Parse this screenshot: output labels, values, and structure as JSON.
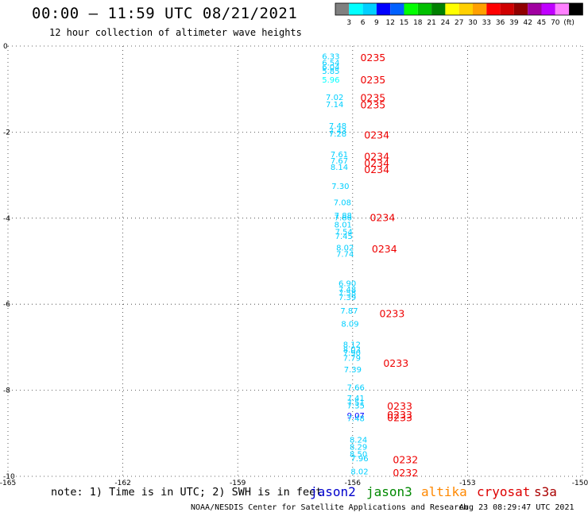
{
  "header": {
    "title": "00:00 – 11:59 UTC 08/21/2021",
    "subtitle": "12 hour collection of altimeter wave heights"
  },
  "legend": {
    "colors": [
      "#808080",
      "#00ffff",
      "#00cfff",
      "#0000ff",
      "#0060ff",
      "#00ff00",
      "#00c000",
      "#008000",
      "#ffff00",
      "#ffd000",
      "#ffa000",
      "#ff0000",
      "#d00000",
      "#900000",
      "#a000a0",
      "#c000ff",
      "#ff80ff",
      "#000000"
    ],
    "labels": [
      "3",
      "6",
      "9",
      "12",
      "15",
      "18",
      "21",
      "24",
      "27",
      "30",
      "33",
      "36",
      "39",
      "42",
      "45",
      "70",
      "(ft)"
    ]
  },
  "footer": {
    "note": "note: 1) Time is in UTC; 2) SWH is in feet",
    "credit": "NOAA/NESDIS Center for Satellite Applications and Research",
    "timestamp": "Aug 23 08:29:47 UTC 2021",
    "satellites": [
      {
        "name": "jason2",
        "color": "#0000cc"
      },
      {
        "name": "jason3",
        "color": "#008800"
      },
      {
        "name": "altika",
        "color": "#ff8800"
      },
      {
        "name": "cryosat",
        "color": "#dd0000"
      },
      {
        "name": "s3a",
        "color": "#aa0000"
      }
    ]
  },
  "chart_data": {
    "type": "scatter",
    "title": "00:00 – 11:59 UTC 08/21/2021",
    "xlabel": "",
    "ylabel": "",
    "xlim": [
      -165,
      -150
    ],
    "ylim": [
      -10,
      0
    ],
    "x_ticks": [
      {
        "value": -165,
        "label": "-165"
      },
      {
        "value": -162,
        "label": "-162"
      },
      {
        "value": -159,
        "label": "-159"
      },
      {
        "value": -156,
        "label": "-156"
      },
      {
        "value": -153,
        "label": "-153"
      },
      {
        "value": -150,
        "label": "-150"
      }
    ],
    "y_ticks": [
      {
        "value": 0,
        "label": "0"
      },
      {
        "value": -2,
        "label": "-2"
      },
      {
        "value": -4,
        "label": "-4"
      },
      {
        "value": -6,
        "label": "-6"
      },
      {
        "value": -8,
        "label": "-8"
      },
      {
        "value": -10,
        "label": "-10"
      }
    ],
    "grid": true,
    "wave_heights": [
      {
        "lon": -156.8,
        "lat": -0.3,
        "value": "6.33",
        "color": "#00cfff"
      },
      {
        "lon": -156.8,
        "lat": -0.45,
        "value": "6.54",
        "color": "#00cfff"
      },
      {
        "lon": -156.8,
        "lat": -0.55,
        "value": "6.04",
        "color": "#00cfff"
      },
      {
        "lon": -156.8,
        "lat": -0.65,
        "value": "5.85",
        "color": "#00cfff"
      },
      {
        "lon": -156.8,
        "lat": -0.85,
        "value": "5.96",
        "color": "#00ffff"
      },
      {
        "lon": -156.7,
        "lat": -1.25,
        "value": "7.02",
        "color": "#00cfff"
      },
      {
        "lon": -156.7,
        "lat": -1.42,
        "value": "7.14",
        "color": "#00cfff"
      },
      {
        "lon": -156.62,
        "lat": -1.92,
        "value": "7.48",
        "color": "#00cfff"
      },
      {
        "lon": -156.62,
        "lat": -2.04,
        "value": "7.43",
        "color": "#00cfff"
      },
      {
        "lon": -156.62,
        "lat": -2.1,
        "value": "7.28",
        "color": "#00cfff"
      },
      {
        "lon": -156.58,
        "lat": -2.58,
        "value": "7.61",
        "color": "#00cfff"
      },
      {
        "lon": -156.58,
        "lat": -2.73,
        "value": "7.67",
        "color": "#00cfff"
      },
      {
        "lon": -156.58,
        "lat": -2.88,
        "value": "8.14",
        "color": "#00cfff"
      },
      {
        "lon": -156.55,
        "lat": -3.32,
        "value": "7.30",
        "color": "#00cfff"
      },
      {
        "lon": -156.5,
        "lat": -3.7,
        "value": "7.08",
        "color": "#00cfff"
      },
      {
        "lon": -156.48,
        "lat": -4.0,
        "value": "7.88",
        "color": "#00cfff"
      },
      {
        "lon": -156.48,
        "lat": -4.05,
        "value": "7.86",
        "color": "#00cfff"
      },
      {
        "lon": -156.48,
        "lat": -4.22,
        "value": "8.01",
        "color": "#00cfff"
      },
      {
        "lon": -156.46,
        "lat": -4.38,
        "value": "7.54",
        "color": "#00cfff"
      },
      {
        "lon": -156.46,
        "lat": -4.48,
        "value": "7.45",
        "color": "#00cfff"
      },
      {
        "lon": -156.43,
        "lat": -4.75,
        "value": "8.02",
        "color": "#00cfff"
      },
      {
        "lon": -156.43,
        "lat": -4.9,
        "value": "7.74",
        "color": "#00cfff"
      },
      {
        "lon": -156.37,
        "lat": -5.58,
        "value": "6.90",
        "color": "#00cfff"
      },
      {
        "lon": -156.37,
        "lat": -5.72,
        "value": "7.48",
        "color": "#00cfff"
      },
      {
        "lon": -156.37,
        "lat": -5.8,
        "value": "7.58",
        "color": "#00cfff"
      },
      {
        "lon": -156.37,
        "lat": -5.9,
        "value": "7.39",
        "color": "#00cfff"
      },
      {
        "lon": -156.32,
        "lat": -6.22,
        "value": "7.87",
        "color": "#00cfff"
      },
      {
        "lon": -156.3,
        "lat": -6.52,
        "value": "8.09",
        "color": "#00cfff"
      },
      {
        "lon": -156.25,
        "lat": -7.0,
        "value": "8.12",
        "color": "#00cfff"
      },
      {
        "lon": -156.25,
        "lat": -7.12,
        "value": "8.03",
        "color": "#00cfff"
      },
      {
        "lon": -156.25,
        "lat": -7.2,
        "value": "7.90",
        "color": "#00cfff"
      },
      {
        "lon": -156.25,
        "lat": -7.32,
        "value": "7.79",
        "color": "#00cfff"
      },
      {
        "lon": -156.23,
        "lat": -7.58,
        "value": "7.39",
        "color": "#00cfff"
      },
      {
        "lon": -156.15,
        "lat": -8.0,
        "value": "7.66",
        "color": "#00cfff"
      },
      {
        "lon": -156.15,
        "lat": -8.25,
        "value": "7.41",
        "color": "#00cfff"
      },
      {
        "lon": -156.15,
        "lat": -8.35,
        "value": "7.51",
        "color": "#00cfff"
      },
      {
        "lon": -156.15,
        "lat": -8.42,
        "value": "7.35",
        "color": "#00cfff"
      },
      {
        "lon": -156.15,
        "lat": -8.65,
        "value": "9.07",
        "color": "#0000ff"
      },
      {
        "lon": -156.15,
        "lat": -8.72,
        "value": "7.48",
        "color": "#00cfff"
      },
      {
        "lon": -156.08,
        "lat": -9.22,
        "value": "8.24",
        "color": "#00cfff"
      },
      {
        "lon": -156.08,
        "lat": -9.38,
        "value": "8.29",
        "color": "#00cfff"
      },
      {
        "lon": -156.08,
        "lat": -9.55,
        "value": "8.50",
        "color": "#00cfff"
      },
      {
        "lon": -156.05,
        "lat": -9.65,
        "value": "7.96",
        "color": "#00cfff"
      },
      {
        "lon": -156.05,
        "lat": -9.95,
        "value": "8.02",
        "color": "#00cfff"
      }
    ],
    "pass_times": [
      {
        "lon": -155.8,
        "lat": -0.35,
        "value": "0235",
        "color": "#ee0000"
      },
      {
        "lon": -155.8,
        "lat": -0.87,
        "value": "0235",
        "color": "#ee0000"
      },
      {
        "lon": -155.8,
        "lat": -1.28,
        "value": "0235",
        "color": "#ee0000"
      },
      {
        "lon": -155.8,
        "lat": -1.45,
        "value": "0235",
        "color": "#ee0000"
      },
      {
        "lon": -155.7,
        "lat": -2.15,
        "value": "0234",
        "color": "#ee0000"
      },
      {
        "lon": -155.7,
        "lat": -2.65,
        "value": "0234",
        "color": "#ee0000"
      },
      {
        "lon": -155.7,
        "lat": -2.8,
        "value": "0234",
        "color": "#ee0000"
      },
      {
        "lon": -155.7,
        "lat": -2.95,
        "value": "0234",
        "color": "#ee0000"
      },
      {
        "lon": -155.55,
        "lat": -4.07,
        "value": "0234",
        "color": "#ee0000"
      },
      {
        "lon": -155.5,
        "lat": -4.8,
        "value": "0234",
        "color": "#ee0000"
      },
      {
        "lon": -155.3,
        "lat": -6.3,
        "value": "0233",
        "color": "#ee0000"
      },
      {
        "lon": -155.2,
        "lat": -7.45,
        "value": "0233",
        "color": "#ee0000"
      },
      {
        "lon": -155.1,
        "lat": -8.45,
        "value": "0233",
        "color": "#ee0000"
      },
      {
        "lon": -155.1,
        "lat": -8.65,
        "value": "0233",
        "color": "#ee0000"
      },
      {
        "lon": -155.1,
        "lat": -8.72,
        "value": "0233",
        "color": "#ee0000"
      },
      {
        "lon": -154.95,
        "lat": -9.7,
        "value": "0232",
        "color": "#ee0000"
      },
      {
        "lon": -154.95,
        "lat": -10.0,
        "value": "0232",
        "color": "#ee0000"
      }
    ]
  }
}
